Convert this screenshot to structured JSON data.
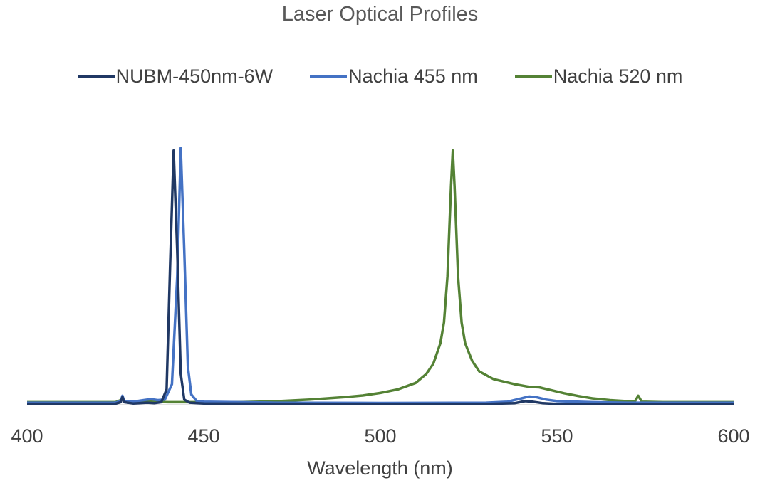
{
  "chart_data": {
    "type": "line",
    "title": "Laser  Optical Profiles",
    "xlabel": "Wavelength (nm)",
    "ylabel": "",
    "xlim": [
      400,
      600
    ],
    "ylim": [
      0,
      1.0
    ],
    "x_ticks": [
      "400",
      "450",
      "500",
      "550",
      "600"
    ],
    "legend_position": "top",
    "grid": false,
    "series": [
      {
        "name": "NUBM-450nm-6W",
        "color": "#203864",
        "x": [
          400,
          425,
          426.5,
          427,
          427.5,
          430,
          434,
          436,
          438,
          439.5,
          440.5,
          441.5,
          442.5,
          443.5,
          444.5,
          446,
          450,
          470,
          500,
          530,
          538,
          541,
          543,
          546,
          550,
          570,
          600
        ],
        "y": [
          0.004,
          0.004,
          0.01,
          0.03,
          0.01,
          0.005,
          0.008,
          0.006,
          0.01,
          0.06,
          0.55,
          0.99,
          0.6,
          0.12,
          0.02,
          0.008,
          0.005,
          0.004,
          0.003,
          0.003,
          0.006,
          0.014,
          0.012,
          0.006,
          0.003,
          0.002,
          0.002
        ]
      },
      {
        "name": "Nachia 455 nm",
        "color": "#4472c4",
        "x": [
          400,
          425,
          426.5,
          427,
          427.5,
          430,
          433,
          435,
          437,
          439,
          441,
          442.5,
          443.5,
          444.5,
          445.5,
          446.5,
          448,
          450,
          470,
          500,
          530,
          536,
          540,
          542,
          544,
          547,
          550,
          560,
          570,
          600
        ],
        "y": [
          0.008,
          0.008,
          0.015,
          0.035,
          0.015,
          0.012,
          0.018,
          0.022,
          0.018,
          0.02,
          0.08,
          0.5,
          1.0,
          0.6,
          0.15,
          0.04,
          0.015,
          0.012,
          0.008,
          0.007,
          0.008,
          0.012,
          0.025,
          0.032,
          0.03,
          0.02,
          0.014,
          0.01,
          0.008,
          0.008
        ]
      },
      {
        "name": "Nachia 520 nm",
        "color": "#548235",
        "x": [
          400,
          425,
          426.5,
          427,
          427.5,
          440,
          460,
          470,
          480,
          490,
          495,
          500,
          505,
          510,
          513,
          515,
          517,
          518,
          519,
          520,
          520.5,
          521,
          522,
          523,
          524,
          526,
          528,
          532,
          538,
          542,
          545,
          548,
          552,
          556,
          560,
          565,
          572,
          573,
          574,
          580,
          600
        ],
        "y": [
          0.01,
          0.01,
          0.018,
          0.03,
          0.015,
          0.01,
          0.01,
          0.013,
          0.02,
          0.03,
          0.036,
          0.046,
          0.06,
          0.085,
          0.12,
          0.16,
          0.24,
          0.32,
          0.5,
          0.85,
          0.99,
          0.85,
          0.5,
          0.32,
          0.24,
          0.17,
          0.13,
          0.1,
          0.08,
          0.07,
          0.068,
          0.058,
          0.045,
          0.034,
          0.025,
          0.018,
          0.012,
          0.035,
          0.012,
          0.01,
          0.01
        ]
      }
    ]
  }
}
